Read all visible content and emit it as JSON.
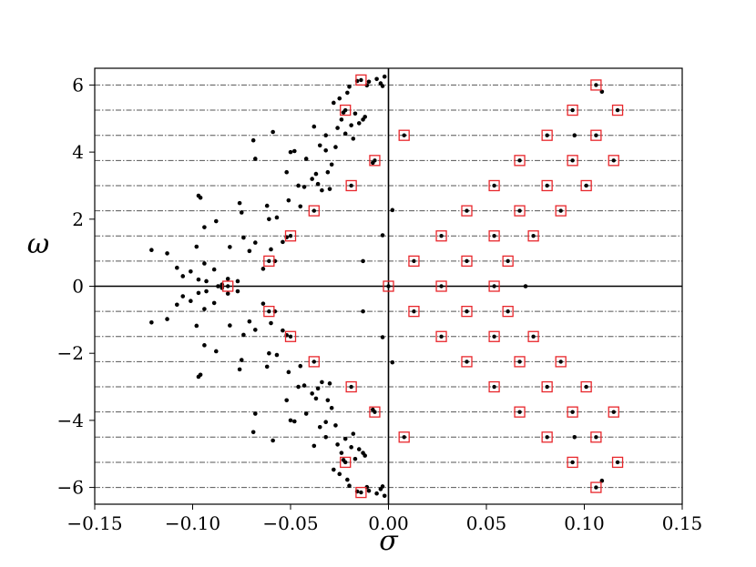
{
  "chart_data": {
    "type": "scatter",
    "title": "",
    "xlabel": "σ",
    "ylabel": "ω",
    "xlim": [
      -0.15,
      0.15
    ],
    "ylim": [
      -6.5,
      6.5
    ],
    "xticks": [
      -0.15,
      -0.1,
      -0.05,
      0.0,
      0.05,
      0.1,
      0.15
    ],
    "xtick_labels": [
      "−0.15",
      "−0.10",
      "−0.05",
      "0.00",
      "0.05",
      "0.10",
      "0.15"
    ],
    "yticks": [
      -6,
      -4,
      -2,
      0,
      2,
      4,
      6
    ],
    "ytick_labels": [
      "−6",
      "−4",
      "−2",
      "0",
      "2",
      "4",
      "6"
    ],
    "reference_lines": {
      "horizontal_dashed_y": [
        -6.0,
        -5.25,
        -4.5,
        -3.75,
        -3.0,
        -2.25,
        -1.5,
        -0.75,
        0.75,
        1.5,
        2.25,
        3.0,
        3.75,
        4.5,
        5.25,
        6.0
      ],
      "solid_x": 0.0,
      "solid_y": 0.0
    },
    "colors": {
      "points": "#000000",
      "markers": "#e8262b",
      "dashed_lines": "#555555"
    },
    "series": [
      {
        "marker": "black-dot",
        "points": [
          [
            -0.121,
            1.08
          ],
          [
            -0.113,
            0.98
          ],
          [
            -0.108,
            0.55
          ],
          [
            -0.105,
            0.3
          ],
          [
            -0.101,
            0.44
          ],
          [
            -0.098,
            1.18
          ],
          [
            -0.097,
            0.2
          ],
          [
            -0.097,
            2.7
          ],
          [
            -0.096,
            2.64
          ],
          [
            -0.094,
            0.68
          ],
          [
            -0.093,
            0.15
          ],
          [
            -0.094,
            1.76
          ],
          [
            -0.089,
            0.5
          ],
          [
            -0.088,
            1.94
          ],
          [
            -0.087,
            0.0
          ],
          [
            -0.085,
            0.05
          ],
          [
            -0.082,
            0.22
          ],
          [
            -0.081,
            1.17
          ],
          [
            -0.077,
            0.15
          ],
          [
            -0.076,
            2.48
          ],
          [
            -0.075,
            2.2
          ],
          [
            -0.074,
            1.45
          ],
          [
            -0.071,
            1.05
          ],
          [
            -0.069,
            4.35
          ],
          [
            -0.068,
            3.8
          ],
          [
            -0.068,
            1.3
          ],
          [
            -0.064,
            0.52
          ],
          [
            -0.062,
            2.4
          ],
          [
            -0.061,
            2.0
          ],
          [
            -0.06,
            1.1
          ],
          [
            -0.059,
            4.6
          ],
          [
            -0.058,
            0.75
          ],
          [
            -0.057,
            2.05
          ],
          [
            -0.054,
            1.32
          ],
          [
            -0.052,
            3.4
          ],
          [
            -0.052,
            1.46
          ],
          [
            -0.051,
            2.56
          ],
          [
            -0.05,
            4.0
          ],
          [
            -0.048,
            4.03
          ],
          [
            -0.046,
            3.0
          ],
          [
            -0.045,
            2.38
          ],
          [
            -0.043,
            2.96
          ],
          [
            -0.042,
            3.8
          ],
          [
            -0.039,
            3.2
          ],
          [
            -0.038,
            4.76
          ],
          [
            -0.037,
            3.35
          ],
          [
            -0.036,
            3.05
          ],
          [
            -0.035,
            4.2
          ],
          [
            -0.034,
            2.86
          ],
          [
            -0.032,
            4.5
          ],
          [
            -0.032,
            4.05
          ],
          [
            -0.031,
            3.4
          ],
          [
            -0.03,
            2.9
          ],
          [
            -0.029,
            3.63
          ],
          [
            -0.028,
            5.47
          ],
          [
            -0.027,
            4.15
          ],
          [
            -0.026,
            4.72
          ],
          [
            -0.025,
            5.6
          ],
          [
            -0.024,
            4.97
          ],
          [
            -0.023,
            5.18
          ],
          [
            -0.022,
            4.55
          ],
          [
            -0.021,
            5.77
          ],
          [
            -0.02,
            5.95
          ],
          [
            -0.019,
            4.8
          ],
          [
            -0.018,
            4.4
          ],
          [
            -0.017,
            5.15
          ],
          [
            -0.016,
            6.12
          ],
          [
            -0.015,
            4.86
          ],
          [
            -0.013,
            4.97
          ],
          [
            -0.012,
            5.05
          ],
          [
            -0.011,
            5.99
          ],
          [
            -0.01,
            6.1
          ],
          [
            -0.008,
            3.68
          ],
          [
            -0.006,
            6.18
          ],
          [
            -0.004,
            6.05
          ],
          [
            -0.003,
            5.97
          ],
          [
            -0.002,
            6.25
          ],
          [
            -0.003,
            1.52
          ],
          [
            0.002,
            2.27
          ],
          [
            -0.013,
            0.75
          ],
          [
            -0.121,
            -1.08
          ],
          [
            -0.113,
            -0.98
          ],
          [
            -0.108,
            -0.55
          ],
          [
            -0.105,
            -0.3
          ],
          [
            -0.101,
            -0.44
          ],
          [
            -0.098,
            -1.18
          ],
          [
            -0.097,
            -0.2
          ],
          [
            -0.097,
            -2.7
          ],
          [
            -0.096,
            -2.64
          ],
          [
            -0.094,
            -0.68
          ],
          [
            -0.093,
            -0.15
          ],
          [
            -0.094,
            -1.76
          ],
          [
            -0.089,
            -0.5
          ],
          [
            -0.088,
            -1.94
          ],
          [
            -0.085,
            -0.05
          ],
          [
            -0.082,
            -0.22
          ],
          [
            -0.081,
            -1.17
          ],
          [
            -0.077,
            -0.15
          ],
          [
            -0.076,
            -2.48
          ],
          [
            -0.075,
            -2.2
          ],
          [
            -0.074,
            -1.45
          ],
          [
            -0.071,
            -1.05
          ],
          [
            -0.069,
            -4.35
          ],
          [
            -0.068,
            -3.8
          ],
          [
            -0.068,
            -1.3
          ],
          [
            -0.064,
            -0.52
          ],
          [
            -0.062,
            -2.4
          ],
          [
            -0.061,
            -2.0
          ],
          [
            -0.06,
            -1.1
          ],
          [
            -0.059,
            -4.6
          ],
          [
            -0.058,
            -0.75
          ],
          [
            -0.057,
            -2.05
          ],
          [
            -0.054,
            -1.32
          ],
          [
            -0.052,
            -3.4
          ],
          [
            -0.052,
            -1.46
          ],
          [
            -0.051,
            -2.56
          ],
          [
            -0.05,
            -4.0
          ],
          [
            -0.048,
            -4.03
          ],
          [
            -0.046,
            -3.0
          ],
          [
            -0.045,
            -2.38
          ],
          [
            -0.043,
            -2.96
          ],
          [
            -0.042,
            -3.8
          ],
          [
            -0.039,
            -3.2
          ],
          [
            -0.038,
            -4.76
          ],
          [
            -0.037,
            -3.35
          ],
          [
            -0.036,
            -3.05
          ],
          [
            -0.035,
            -4.2
          ],
          [
            -0.034,
            -2.86
          ],
          [
            -0.032,
            -4.5
          ],
          [
            -0.032,
            -4.05
          ],
          [
            -0.031,
            -3.4
          ],
          [
            -0.03,
            -2.9
          ],
          [
            -0.029,
            -3.63
          ],
          [
            -0.028,
            -5.47
          ],
          [
            -0.027,
            -4.15
          ],
          [
            -0.026,
            -4.72
          ],
          [
            -0.025,
            -5.6
          ],
          [
            -0.024,
            -4.97
          ],
          [
            -0.023,
            -5.18
          ],
          [
            -0.022,
            -4.55
          ],
          [
            -0.021,
            -5.77
          ],
          [
            -0.02,
            -5.95
          ],
          [
            -0.019,
            -4.8
          ],
          [
            -0.018,
            -4.4
          ],
          [
            -0.017,
            -5.15
          ],
          [
            -0.016,
            -6.12
          ],
          [
            -0.015,
            -4.86
          ],
          [
            -0.013,
            -4.97
          ],
          [
            -0.012,
            -5.05
          ],
          [
            -0.011,
            -5.99
          ],
          [
            -0.01,
            -6.1
          ],
          [
            -0.008,
            -3.68
          ],
          [
            -0.006,
            -6.18
          ],
          [
            -0.004,
            -6.05
          ],
          [
            -0.003,
            -5.97
          ],
          [
            -0.002,
            -6.25
          ],
          [
            -0.003,
            -1.52
          ],
          [
            0.002,
            -2.27
          ],
          [
            -0.013,
            -0.75
          ],
          [
            0.07,
            0.0
          ],
          [
            0.109,
            5.8
          ],
          [
            0.109,
            -5.8
          ],
          [
            0.095,
            4.5
          ],
          [
            0.095,
            -4.5
          ]
        ]
      },
      {
        "marker": "red-square-with-dot",
        "points": [
          [
            -0.082,
            0.0
          ],
          [
            0.0,
            0.0
          ],
          [
            0.027,
            0.0
          ],
          [
            0.054,
            0.0
          ],
          [
            -0.061,
            0.75
          ],
          [
            0.013,
            0.75
          ],
          [
            0.04,
            0.75
          ],
          [
            0.061,
            0.75
          ],
          [
            -0.05,
            1.5
          ],
          [
            0.027,
            1.5
          ],
          [
            0.054,
            1.5
          ],
          [
            0.074,
            1.5
          ],
          [
            -0.038,
            2.25
          ],
          [
            0.04,
            2.25
          ],
          [
            0.067,
            2.25
          ],
          [
            0.088,
            2.25
          ],
          [
            -0.019,
            3.0
          ],
          [
            0.054,
            3.0
          ],
          [
            0.081,
            3.0
          ],
          [
            0.101,
            3.0
          ],
          [
            -0.007,
            3.75
          ],
          [
            0.067,
            3.75
          ],
          [
            0.094,
            3.75
          ],
          [
            0.115,
            3.75
          ],
          [
            0.008,
            4.5
          ],
          [
            0.081,
            4.5
          ],
          [
            0.106,
            4.5
          ],
          [
            -0.022,
            5.25
          ],
          [
            0.094,
            5.25
          ],
          [
            0.117,
            5.25
          ],
          [
            -0.014,
            6.15
          ],
          [
            0.106,
            6.0
          ],
          [
            -0.061,
            -0.75
          ],
          [
            0.013,
            -0.75
          ],
          [
            0.04,
            -0.75
          ],
          [
            0.061,
            -0.75
          ],
          [
            -0.05,
            -1.5
          ],
          [
            0.027,
            -1.5
          ],
          [
            0.054,
            -1.5
          ],
          [
            0.074,
            -1.5
          ],
          [
            -0.038,
            -2.25
          ],
          [
            0.04,
            -2.25
          ],
          [
            0.067,
            -2.25
          ],
          [
            0.088,
            -2.25
          ],
          [
            -0.019,
            -3.0
          ],
          [
            0.054,
            -3.0
          ],
          [
            0.081,
            -3.0
          ],
          [
            0.101,
            -3.0
          ],
          [
            -0.007,
            -3.75
          ],
          [
            0.067,
            -3.75
          ],
          [
            0.094,
            -3.75
          ],
          [
            0.115,
            -3.75
          ],
          [
            0.008,
            -4.5
          ],
          [
            0.081,
            -4.5
          ],
          [
            0.106,
            -4.5
          ],
          [
            -0.022,
            -5.25
          ],
          [
            0.094,
            -5.25
          ],
          [
            0.117,
            -5.25
          ],
          [
            -0.014,
            -6.15
          ],
          [
            0.106,
            -6.0
          ]
        ]
      }
    ]
  }
}
